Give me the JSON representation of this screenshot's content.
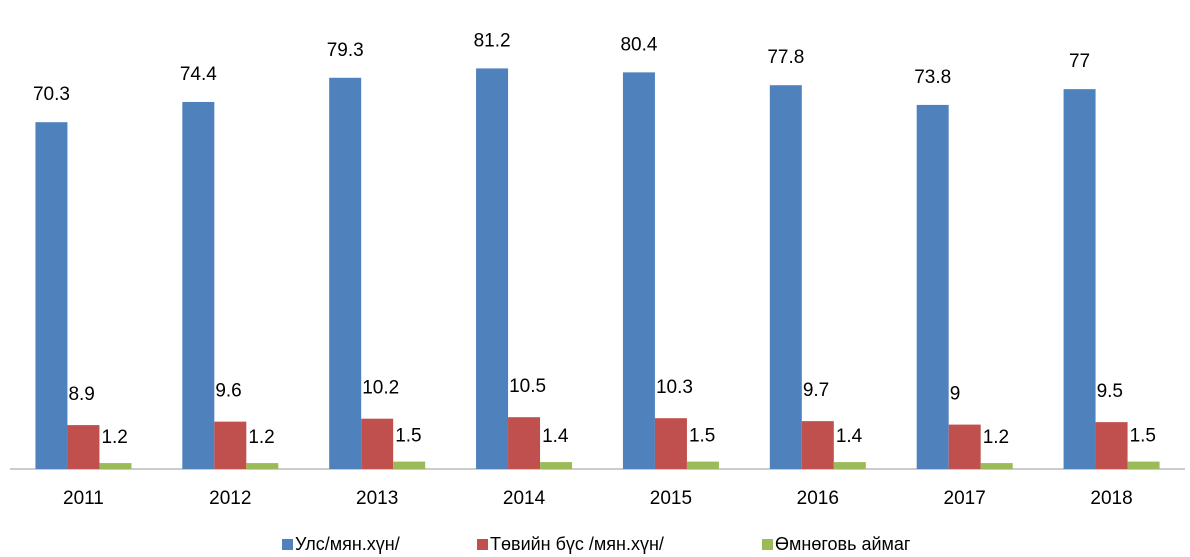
{
  "chart_data": {
    "type": "bar",
    "categories": [
      "2011",
      "2012",
      "2013",
      "2014",
      "2015",
      "2016",
      "2017",
      "2018"
    ],
    "series": [
      {
        "name": "Улс/мян.хүн/",
        "color": "#4f81bd",
        "values": [
          70.3,
          74.4,
          79.3,
          81.2,
          80.4,
          77.8,
          73.8,
          77
        ]
      },
      {
        "name": "Төвийн бүс /мян.хүн/",
        "color": "#c0504d",
        "values": [
          8.9,
          9.6,
          10.2,
          10.5,
          10.3,
          9.7,
          9,
          9.5
        ]
      },
      {
        "name": "Өмнөговь аймаг",
        "color": "#9bbb59",
        "values": [
          1.2,
          1.2,
          1.5,
          1.4,
          1.5,
          1.4,
          1.2,
          1.5
        ]
      }
    ],
    "ylim": [
      0,
      90
    ]
  }
}
